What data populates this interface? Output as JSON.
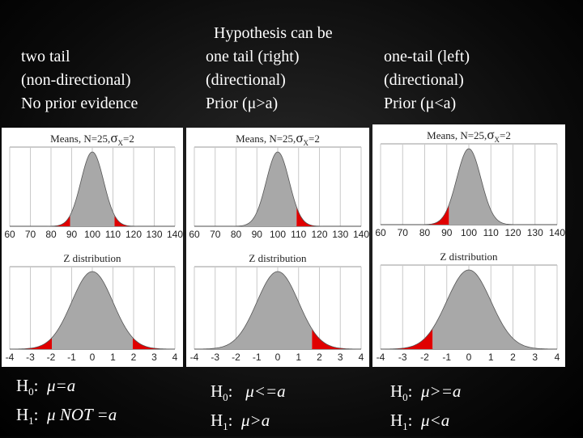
{
  "title": "Hypothesis can be",
  "columns": [
    {
      "id": "two-tail",
      "heading": [
        "two tail",
        "(non-directional)",
        "No prior evidence"
      ],
      "sample_title": "Means, N=25,",
      "sigma": "σ",
      "sigma_sub": "X",
      "sigma_val": "=2",
      "z_title": "Z distribution",
      "sample_ticks": [
        "60",
        "70",
        "80",
        "90",
        "100",
        "110",
        "120",
        "130",
        "140"
      ],
      "z_ticks": [
        "-4",
        "-3",
        "-2",
        "-1",
        "0",
        "1",
        "2",
        "3",
        "4"
      ],
      "shade": "both",
      "h0_label": "H",
      "h0_sub": "0",
      "h0_colon": ":",
      "h0_expr": "μ=a",
      "h1_label": "H",
      "h1_sub": "1",
      "h1_colon": ":",
      "h1_expr": "μ NOT =a"
    },
    {
      "id": "one-tail-right",
      "heading": [
        "one tail (right)",
        "(directional)",
        "Prior (μ>a)"
      ],
      "sample_title": "Means, N=25,",
      "sigma": "σ",
      "sigma_sub": "X",
      "sigma_val": "=2",
      "z_title": "Z distribution",
      "sample_ticks": [
        "60",
        "70",
        "80",
        "90",
        "100",
        "110",
        "120",
        "130",
        "140"
      ],
      "z_ticks": [
        "-4",
        "-3",
        "-2",
        "-1",
        "0",
        "1",
        "2",
        "3",
        "4"
      ],
      "shade": "right",
      "h0_label": "H",
      "h0_sub": "0",
      "h0_colon": ":",
      "h0_expr": "μ<=a",
      "h1_label": "H",
      "h1_sub": "1",
      "h1_colon": ":",
      "h1_expr": "μ>a"
    },
    {
      "id": "one-tail-left",
      "heading": [
        "one-tail (left)",
        "(directional)",
        "Prior (μ<a)"
      ],
      "sample_title": "Means, N=25,",
      "sigma": "σ",
      "sigma_sub": "X",
      "sigma_val": "=2",
      "z_title": "Z distribution",
      "sample_ticks": [
        "60",
        "70",
        "80",
        "90",
        "100",
        "110",
        "120",
        "130",
        "140"
      ],
      "z_ticks": [
        "-4",
        "-3",
        "-2",
        "-1",
        "0",
        "1",
        "2",
        "3",
        "4"
      ],
      "shade": "left",
      "h0_label": "H",
      "h0_sub": "0",
      "h0_colon": ":",
      "h0_expr": "μ>=a",
      "h1_label": "H",
      "h1_sub": "1",
      "h1_colon": ":",
      "h1_expr": "μ<a"
    }
  ],
  "colors": {
    "curve_fill": "#a8a8a8",
    "tail_fill": "#e00000",
    "grid": "#c9c9c9",
    "background": "#000000",
    "text": "#ffffff"
  }
}
